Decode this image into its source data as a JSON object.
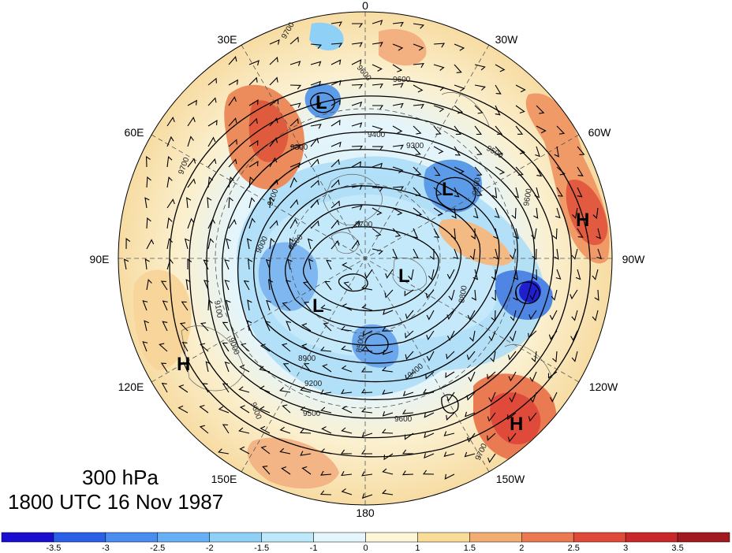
{
  "map": {
    "projection": "north polar stereographic",
    "title_level": "300 hPa",
    "title_time": "1800 UTC 16 Nov 1987",
    "longitude_labels": [
      "0",
      "30W",
      "60W",
      "90W",
      "120W",
      "150W",
      "180",
      "150E",
      "120E",
      "90E",
      "60E",
      "30E"
    ],
    "pressure_centers": [
      {
        "type": "L",
        "name": "low-north-atlantic"
      },
      {
        "type": "L",
        "name": "low-baffin"
      },
      {
        "type": "L",
        "name": "low-pole"
      },
      {
        "type": "L",
        "name": "low-siberia"
      },
      {
        "type": "H",
        "name": "high-western-atlantic"
      },
      {
        "type": "H",
        "name": "high-asia"
      },
      {
        "type": "H",
        "name": "high-north-pacific"
      }
    ],
    "contour_labels": [
      "9700",
      "9600",
      "9600",
      "9400",
      "9300",
      "9300",
      "9500",
      "9200",
      "9200",
      "9000",
      "8500",
      "8700",
      "8500",
      "8900",
      "9200",
      "9500",
      "9600",
      "9400",
      "9600",
      "9700",
      "9100",
      "9000",
      "8800",
      "9600",
      "9700"
    ],
    "colors": {
      "low_center": "#3f7fe0",
      "deep_low": "#1f1fd0",
      "high_center": "#e0503a"
    }
  },
  "colorbar": {
    "tick_labels": [
      "-3.5",
      "-3",
      "-2.5",
      "-2",
      "-1.5",
      "-1",
      "0",
      "1",
      "1.5",
      "2",
      "2.5",
      "3",
      "3.5"
    ],
    "colors": [
      "#1a0dd0",
      "#2a5fe8",
      "#4a8cf0",
      "#68b0f5",
      "#8fd0f7",
      "#bde8fa",
      "#e4f5fb",
      "#fdf6d8",
      "#f8dc98",
      "#f2ad72",
      "#eb7a52",
      "#e04a3a",
      "#c8282a",
      "#a01a20"
    ]
  }
}
